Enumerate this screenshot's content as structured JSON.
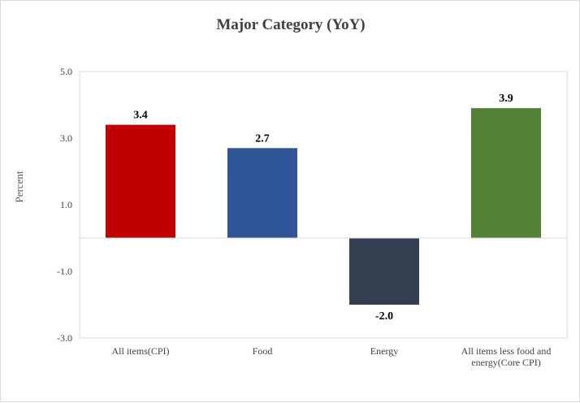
{
  "chart_data": {
    "type": "bar",
    "title": "Major Category (YoY)",
    "ylabel": "Percent",
    "xlabel": "",
    "categories": [
      [
        "All items(CPI)"
      ],
      [
        "Food"
      ],
      [
        "Energy"
      ],
      [
        "All items less food and",
        "energy(Core CPI)"
      ]
    ],
    "values": [
      3.4,
      2.7,
      -2.0,
      3.9
    ],
    "value_labels": [
      "3.4",
      "2.7",
      "-2.0",
      "3.9"
    ],
    "colors": [
      "#c00000",
      "#2f5597",
      "#323f4f",
      "#548235"
    ],
    "ylim": [
      -3.0,
      5.0
    ],
    "yticks": [
      5.0,
      3.0,
      1.0,
      -1.0,
      -3.0
    ],
    "ytick_labels": [
      "5.0",
      "3.0",
      "1.0",
      "-1.0",
      "-3.0"
    ],
    "grid": false,
    "legend": "none"
  }
}
